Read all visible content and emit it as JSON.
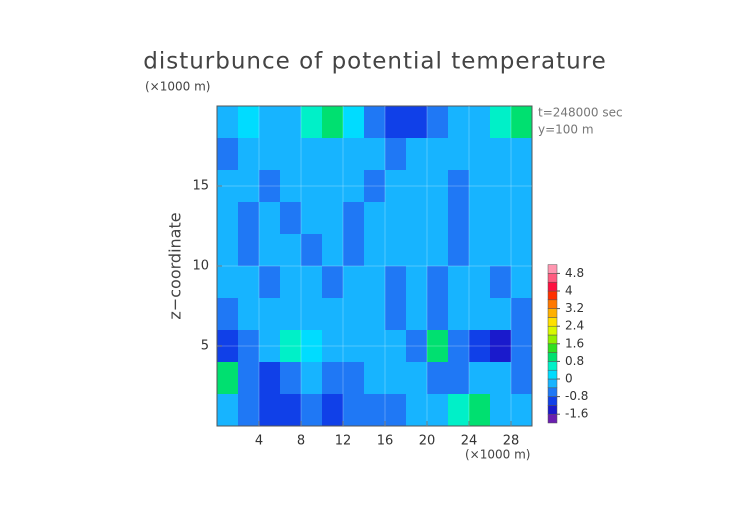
{
  "chart_data": {
    "type": "heatmap",
    "title": "disturbunce of potential temperature",
    "y_unit": "(×1000 m)",
    "x_unit": "(×1000 m)",
    "ylabel": "z−coordinate",
    "annotations": [
      "t=248000 sec",
      "y=100 m"
    ],
    "xlim": [
      0,
      30
    ],
    "ylim": [
      0,
      20
    ],
    "xticks": [
      4,
      8,
      12,
      16,
      20,
      24,
      28
    ],
    "yticks": [
      5,
      10,
      15
    ],
    "x": [
      1,
      3,
      5,
      7,
      9,
      11,
      13,
      15,
      17,
      19,
      21,
      23,
      25,
      27,
      29
    ],
    "y": [
      19,
      17,
      15,
      13,
      11,
      9,
      7,
      5,
      3,
      1
    ],
    "values": [
      [
        -0.2,
        0.2,
        -0.2,
        -0.2,
        0.4,
        0.8,
        0.2,
        -0.6,
        -1.0,
        -1.0,
        -0.6,
        -0.2,
        -0.2,
        0.4,
        0.8
      ],
      [
        -0.6,
        -0.2,
        -0.2,
        -0.2,
        -0.2,
        -0.2,
        -0.2,
        -0.2,
        -0.6,
        -0.2,
        -0.2,
        -0.2,
        -0.2,
        -0.2,
        -0.2
      ],
      [
        -0.2,
        -0.2,
        -0.6,
        -0.2,
        -0.2,
        -0.2,
        -0.2,
        -0.6,
        -0.2,
        -0.2,
        -0.2,
        -0.6,
        -0.2,
        -0.2,
        -0.2
      ],
      [
        -0.2,
        -0.6,
        -0.2,
        -0.6,
        -0.2,
        -0.2,
        -0.6,
        -0.2,
        -0.2,
        -0.2,
        -0.2,
        -0.6,
        -0.2,
        -0.2,
        -0.2
      ],
      [
        -0.2,
        -0.6,
        -0.2,
        -0.2,
        -0.6,
        -0.2,
        -0.6,
        -0.2,
        -0.2,
        -0.2,
        -0.2,
        -0.6,
        -0.2,
        -0.2,
        -0.2
      ],
      [
        -0.2,
        -0.2,
        -0.6,
        -0.2,
        -0.2,
        -0.6,
        -0.2,
        -0.2,
        -0.6,
        -0.2,
        -0.6,
        -0.2,
        -0.2,
        -0.6,
        -0.2
      ],
      [
        -0.6,
        -0.2,
        -0.2,
        -0.2,
        -0.2,
        -0.2,
        -0.2,
        -0.2,
        -0.6,
        -0.2,
        -0.6,
        -0.2,
        -0.2,
        -0.2,
        -0.6
      ],
      [
        -1.0,
        -0.6,
        -0.2,
        0.6,
        0.2,
        -0.2,
        -0.2,
        -0.2,
        -0.2,
        -0.6,
        0.8,
        -0.6,
        -1.0,
        -1.4,
        -0.6
      ],
      [
        0.8,
        -0.6,
        -1.0,
        -0.6,
        -0.2,
        -0.6,
        -0.6,
        -0.2,
        -0.2,
        -0.2,
        -0.6,
        -0.6,
        -0.2,
        -0.2,
        -0.6
      ],
      [
        -0.2,
        -0.6,
        -1.0,
        -1.0,
        -0.6,
        -1.0,
        -0.6,
        -0.6,
        -0.6,
        -0.2,
        -0.2,
        0.6,
        0.8,
        -0.2,
        -0.2
      ]
    ],
    "colorbar": {
      "levels": [
        -2.0,
        -1.6,
        -1.2,
        -0.8,
        -0.4,
        0,
        0.4,
        0.8,
        1.2,
        1.6,
        2.0,
        2.4,
        2.8,
        3.2,
        3.6,
        4.0,
        4.4,
        4.8,
        5.2
      ],
      "colors": [
        "#6a1fb0",
        "#1a1acc",
        "#1040e8",
        "#1f78f5",
        "#17b4ff",
        "#00dcff",
        "#00f0c8",
        "#00e070",
        "#30e020",
        "#90f000",
        "#d8f800",
        "#ffe000",
        "#ffb000",
        "#ff7800",
        "#ff3000",
        "#ff1040",
        "#ff5c80",
        "#ff96b0"
      ],
      "ticks": [
        -1.6,
        -0.8,
        0,
        0.8,
        1.6,
        2.4,
        3.2,
        4,
        4.8
      ]
    }
  }
}
